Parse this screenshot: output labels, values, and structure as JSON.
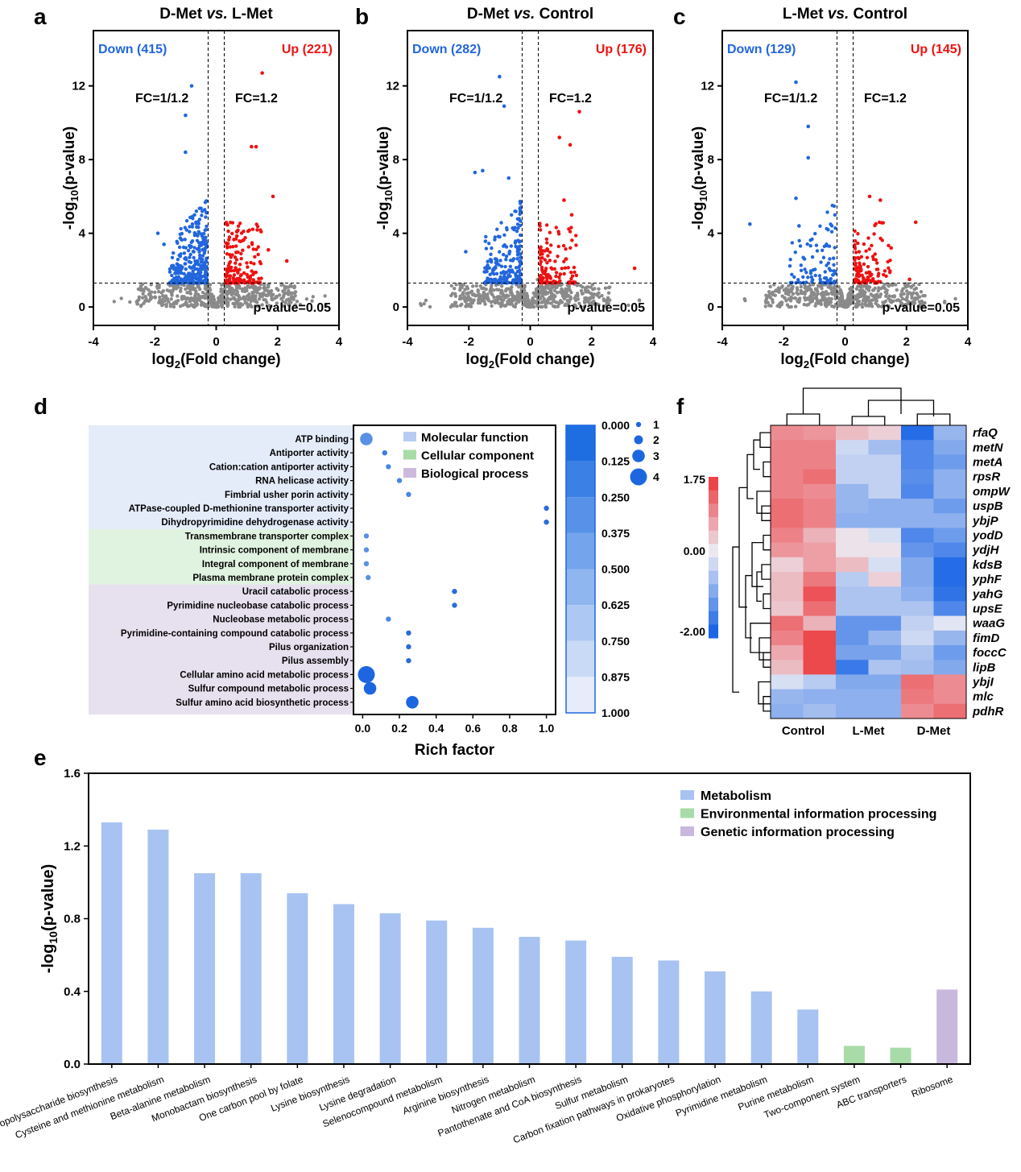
{
  "panel_letters": [
    "a",
    "b",
    "c",
    "d",
    "e",
    "f"
  ],
  "volcano": [
    {
      "title_left": "D-Met ",
      "title_vs": "vs.",
      "title_right": " L-Met",
      "down": "Down (415)",
      "up": "Up (221)",
      "down_n": 415,
      "up_n": 221,
      "seed": 11,
      "maxUp": [
        [
          1.5,
          12.7
        ],
        [
          1.15,
          8.7
        ],
        [
          1.3,
          8.7
        ],
        [
          1.85,
          6.0
        ],
        [
          1.7,
          3.1
        ],
        [
          2.3,
          2.5
        ]
      ],
      "maxDown": [
        [
          -0.8,
          12.0
        ],
        [
          -1.0,
          10.4
        ],
        [
          -1.0,
          8.4
        ],
        [
          -1.9,
          4.0
        ],
        [
          -1.7,
          3.4
        ]
      ]
    },
    {
      "title_left": "D-Met ",
      "title_vs": "vs.",
      "title_right": " Control",
      "down": "Down (282)",
      "up": "Up (176)",
      "down_n": 282,
      "up_n": 176,
      "seed": 23,
      "maxUp": [
        [
          1.6,
          10.6
        ],
        [
          0.95,
          9.2
        ],
        [
          1.3,
          8.8
        ],
        [
          1.1,
          5.8
        ],
        [
          1.35,
          5.0
        ],
        [
          3.4,
          2.1
        ]
      ],
      "maxDown": [
        [
          -1.0,
          12.5
        ],
        [
          -0.85,
          10.9
        ],
        [
          -1.55,
          7.4
        ],
        [
          -1.8,
          7.3
        ],
        [
          -0.7,
          7.0
        ],
        [
          -2.1,
          3.0
        ]
      ]
    },
    {
      "title_left": "L-Met ",
      "title_vs": "vs.",
      "title_right": " Control",
      "down": "Down (129)",
      "up": "Up (145)",
      "down_n": 129,
      "up_n": 145,
      "seed": 37,
      "maxUp": [
        [
          0.8,
          6.0
        ],
        [
          1.15,
          5.8
        ],
        [
          2.3,
          4.6
        ],
        [
          1.5,
          3.2
        ],
        [
          2.1,
          1.5
        ]
      ],
      "maxDown": [
        [
          -1.6,
          12.2
        ],
        [
          -1.2,
          9.8
        ],
        [
          -1.2,
          8.1
        ],
        [
          -3.1,
          4.5
        ],
        [
          -1.5,
          4.4
        ],
        [
          -1.6,
          5.9
        ]
      ]
    }
  ],
  "volcano_common": {
    "fc_left": "FC=1/1.2",
    "fc_right": "FC=1.2",
    "pval": "p-value=0.05",
    "ylabel": "-log10(p-value)",
    "xlabel": "log2(Fold change)",
    "xlim": [
      -4,
      4
    ],
    "ylim": [
      -1,
      15
    ],
    "xticks": [
      "-4",
      "-2",
      "0",
      "2",
      "4"
    ],
    "yticks": [
      "0",
      "4",
      "8",
      "12"
    ],
    "fc": 0.263,
    "pthr": 1.3
  },
  "chart_data": [
    {
      "type": "scatter",
      "name": "panel-d-go-enrichment",
      "xlabel": "Rich factor",
      "xticks": [
        "0.0",
        "0.2",
        "0.4",
        "0.6",
        "0.8",
        "1.0"
      ],
      "xlim": [
        -0.05,
        1.05
      ],
      "colorbar_ticks": [
        "0.000",
        "0.125",
        "0.250",
        "0.375",
        "0.500",
        "0.625",
        "0.750",
        "0.875",
        "1.000"
      ],
      "size_legend": [
        "1",
        "2",
        "3",
        "4"
      ],
      "categories_legend": [
        {
          "label": "Molecular function",
          "color": "#b6ccf2"
        },
        {
          "label": "Cellular component",
          "color": "#a8dba8"
        },
        {
          "label": "Biological process",
          "color": "#cdb9de"
        }
      ],
      "terms": [
        {
          "term": "ATP binding",
          "x": 0.02,
          "size": 3,
          "color": "#5a90e6",
          "group": 0
        },
        {
          "term": "Antiporter activity",
          "x": 0.12,
          "size": 1,
          "color": "#3c7ce6",
          "group": 0
        },
        {
          "term": "Cation:cation antiporter activity",
          "x": 0.14,
          "size": 1,
          "color": "#4a86e6",
          "group": 0
        },
        {
          "term": "RNA helicase activity",
          "x": 0.2,
          "size": 1,
          "color": "#4a86e6",
          "group": 0
        },
        {
          "term": "Fimbrial usher porin activity",
          "x": 0.25,
          "size": 1,
          "color": "#4a86e6",
          "group": 0
        },
        {
          "term": "ATPase-coupled D-methionine transporter activity",
          "x": 1.0,
          "size": 1,
          "color": "#2b6bd9",
          "group": 0
        },
        {
          "term": "Dihydropyrimidine dehydrogenase activity",
          "x": 1.0,
          "size": 1,
          "color": "#2b6bd9",
          "group": 0
        },
        {
          "term": "Transmembrane transporter complex",
          "x": 0.02,
          "size": 1,
          "color": "#5a90e6",
          "group": 1
        },
        {
          "term": "Intrinsic component of membrane",
          "x": 0.02,
          "size": 1,
          "color": "#5a90e6",
          "group": 1
        },
        {
          "term": "Integral component of membrane",
          "x": 0.02,
          "size": 1,
          "color": "#5a90e6",
          "group": 1
        },
        {
          "term": "Plasma membrane protein complex",
          "x": 0.03,
          "size": 1,
          "color": "#5a90e6",
          "group": 1
        },
        {
          "term": "Uracil catabolic process",
          "x": 0.5,
          "size": 1,
          "color": "#2b6bd9",
          "group": 2
        },
        {
          "term": "Pyrimidine nucleobase catabolic process",
          "x": 0.5,
          "size": 1,
          "color": "#2b6bd9",
          "group": 2
        },
        {
          "term": "Nucleobase metabolic process",
          "x": 0.14,
          "size": 1,
          "color": "#4a86e6",
          "group": 2
        },
        {
          "term": "Pyrimidine-containing compound catabolic process",
          "x": 0.25,
          "size": 1,
          "color": "#2b6bd9",
          "group": 2
        },
        {
          "term": "Pilus organization",
          "x": 0.25,
          "size": 1,
          "color": "#2b6bd9",
          "group": 2
        },
        {
          "term": "Pilus assembly",
          "x": 0.25,
          "size": 1,
          "color": "#2b6bd9",
          "group": 2
        },
        {
          "term": "Cellular amino acid metabolic process",
          "x": 0.02,
          "size": 4,
          "color": "#1e66e0",
          "group": 2
        },
        {
          "term": "Sulfur compound metabolic process",
          "x": 0.04,
          "size": 3,
          "color": "#1e66e0",
          "group": 2
        },
        {
          "term": "Sulfur amino acid biosynthetic process",
          "x": 0.27,
          "size": 3,
          "color": "#1e66e0",
          "group": 2
        }
      ]
    },
    {
      "type": "bar",
      "name": "panel-e-kegg",
      "ylabel": "-log10(p-value)",
      "ylim": [
        0,
        1.6
      ],
      "yticks": [
        "0.0",
        "0.4",
        "0.8",
        "1.2",
        "1.6"
      ],
      "legend": [
        {
          "label": "Metabolism",
          "color": "#a8c3f2"
        },
        {
          "label": "Environmental information processing",
          "color": "#a8dba8"
        },
        {
          "label": "Genetic information processing",
          "color": "#c9b8de"
        }
      ],
      "categories": [
        "Lipopolysaccharide biosynthesis",
        "Cysteine and methionine metabolism",
        "Beta-alanine metabolism",
        "Monobactam biosynthesis",
        "One carbon pool by folate",
        "Lysine biosynthesis",
        "Lysine degradation",
        "Selenocompound metabolism",
        "Arginine biosynthesis",
        "Nitrogen metabolism",
        "Pantothenate and CoA biosynthesis",
        "Sulfur metabolism",
        "Carbon fixation pathways in prokaryotes",
        "Oxidative phosphorylation",
        "Pyrimidine metabolism",
        "Purine metabolism",
        "Two-component system",
        "ABC transporters",
        "Ribosome"
      ],
      "values": [
        1.33,
        1.29,
        1.05,
        1.05,
        0.94,
        0.88,
        0.83,
        0.79,
        0.75,
        0.7,
        0.68,
        0.59,
        0.57,
        0.51,
        0.4,
        0.3,
        0.1,
        0.09,
        0.41
      ],
      "groups": [
        0,
        0,
        0,
        0,
        0,
        0,
        0,
        0,
        0,
        0,
        0,
        0,
        0,
        0,
        0,
        0,
        1,
        1,
        2
      ]
    },
    {
      "type": "heatmap",
      "name": "panel-f-heatmap",
      "genes": [
        "rfaQ",
        "metN",
        "metA",
        "rpsR",
        "ompW",
        "uspB",
        "ybjP",
        "yodD",
        "ydjH",
        "kdsB",
        "yphF",
        "yahG",
        "upsE",
        "waaG",
        "fimD",
        "foccC",
        "lipB",
        "ybjI",
        "mlc",
        "pdhR"
      ],
      "groups": [
        "Control",
        "L-Met",
        "D-Met"
      ],
      "colorbar_labels": [
        "1.75",
        "0.00",
        "-2.00"
      ],
      "values": [
        [
          1.0,
          0.9,
          0.5,
          0.3,
          -1.9,
          -0.8
        ],
        [
          1.1,
          1.1,
          -0.3,
          -0.7,
          -1.5,
          -1.0
        ],
        [
          1.1,
          1.1,
          -0.4,
          -0.4,
          -1.5,
          -1.2
        ],
        [
          1.1,
          1.3,
          -0.4,
          -0.4,
          -1.4,
          -0.9
        ],
        [
          1.1,
          1.0,
          -0.8,
          -0.4,
          -1.5,
          -0.9
        ],
        [
          1.3,
          1.1,
          -0.8,
          -0.9,
          -0.9,
          -1.2
        ],
        [
          1.3,
          1.1,
          -0.9,
          -0.9,
          -0.9,
          -0.9
        ],
        [
          1.1,
          0.6,
          0.1,
          -0.2,
          -1.5,
          -1.2
        ],
        [
          0.9,
          0.8,
          0.1,
          0.1,
          -1.3,
          -1.5
        ],
        [
          0.3,
          0.8,
          0.5,
          -0.2,
          -1.0,
          -1.9
        ],
        [
          0.5,
          1.2,
          -0.5,
          0.3,
          -1.0,
          -1.9
        ],
        [
          0.5,
          1.6,
          -0.6,
          -0.6,
          -0.9,
          -1.8
        ],
        [
          0.4,
          1.3,
          -0.6,
          -0.6,
          -0.6,
          -1.5
        ],
        [
          1.3,
          0.6,
          -1.3,
          -1.3,
          -0.4,
          -0.1
        ],
        [
          1.1,
          1.7,
          -1.3,
          -0.8,
          -0.3,
          -0.8
        ],
        [
          0.7,
          1.7,
          -1.1,
          -1.1,
          -0.6,
          -1.2
        ],
        [
          0.5,
          1.7,
          -1.7,
          -0.6,
          -0.7,
          -1.0
        ],
        [
          -0.2,
          -0.5,
          -1.0,
          -1.0,
          1.3,
          1.0
        ],
        [
          -0.8,
          -0.9,
          -0.9,
          -0.9,
          1.2,
          1.0
        ],
        [
          -0.9,
          -0.7,
          -0.9,
          -0.9,
          1.0,
          1.3
        ]
      ]
    }
  ]
}
